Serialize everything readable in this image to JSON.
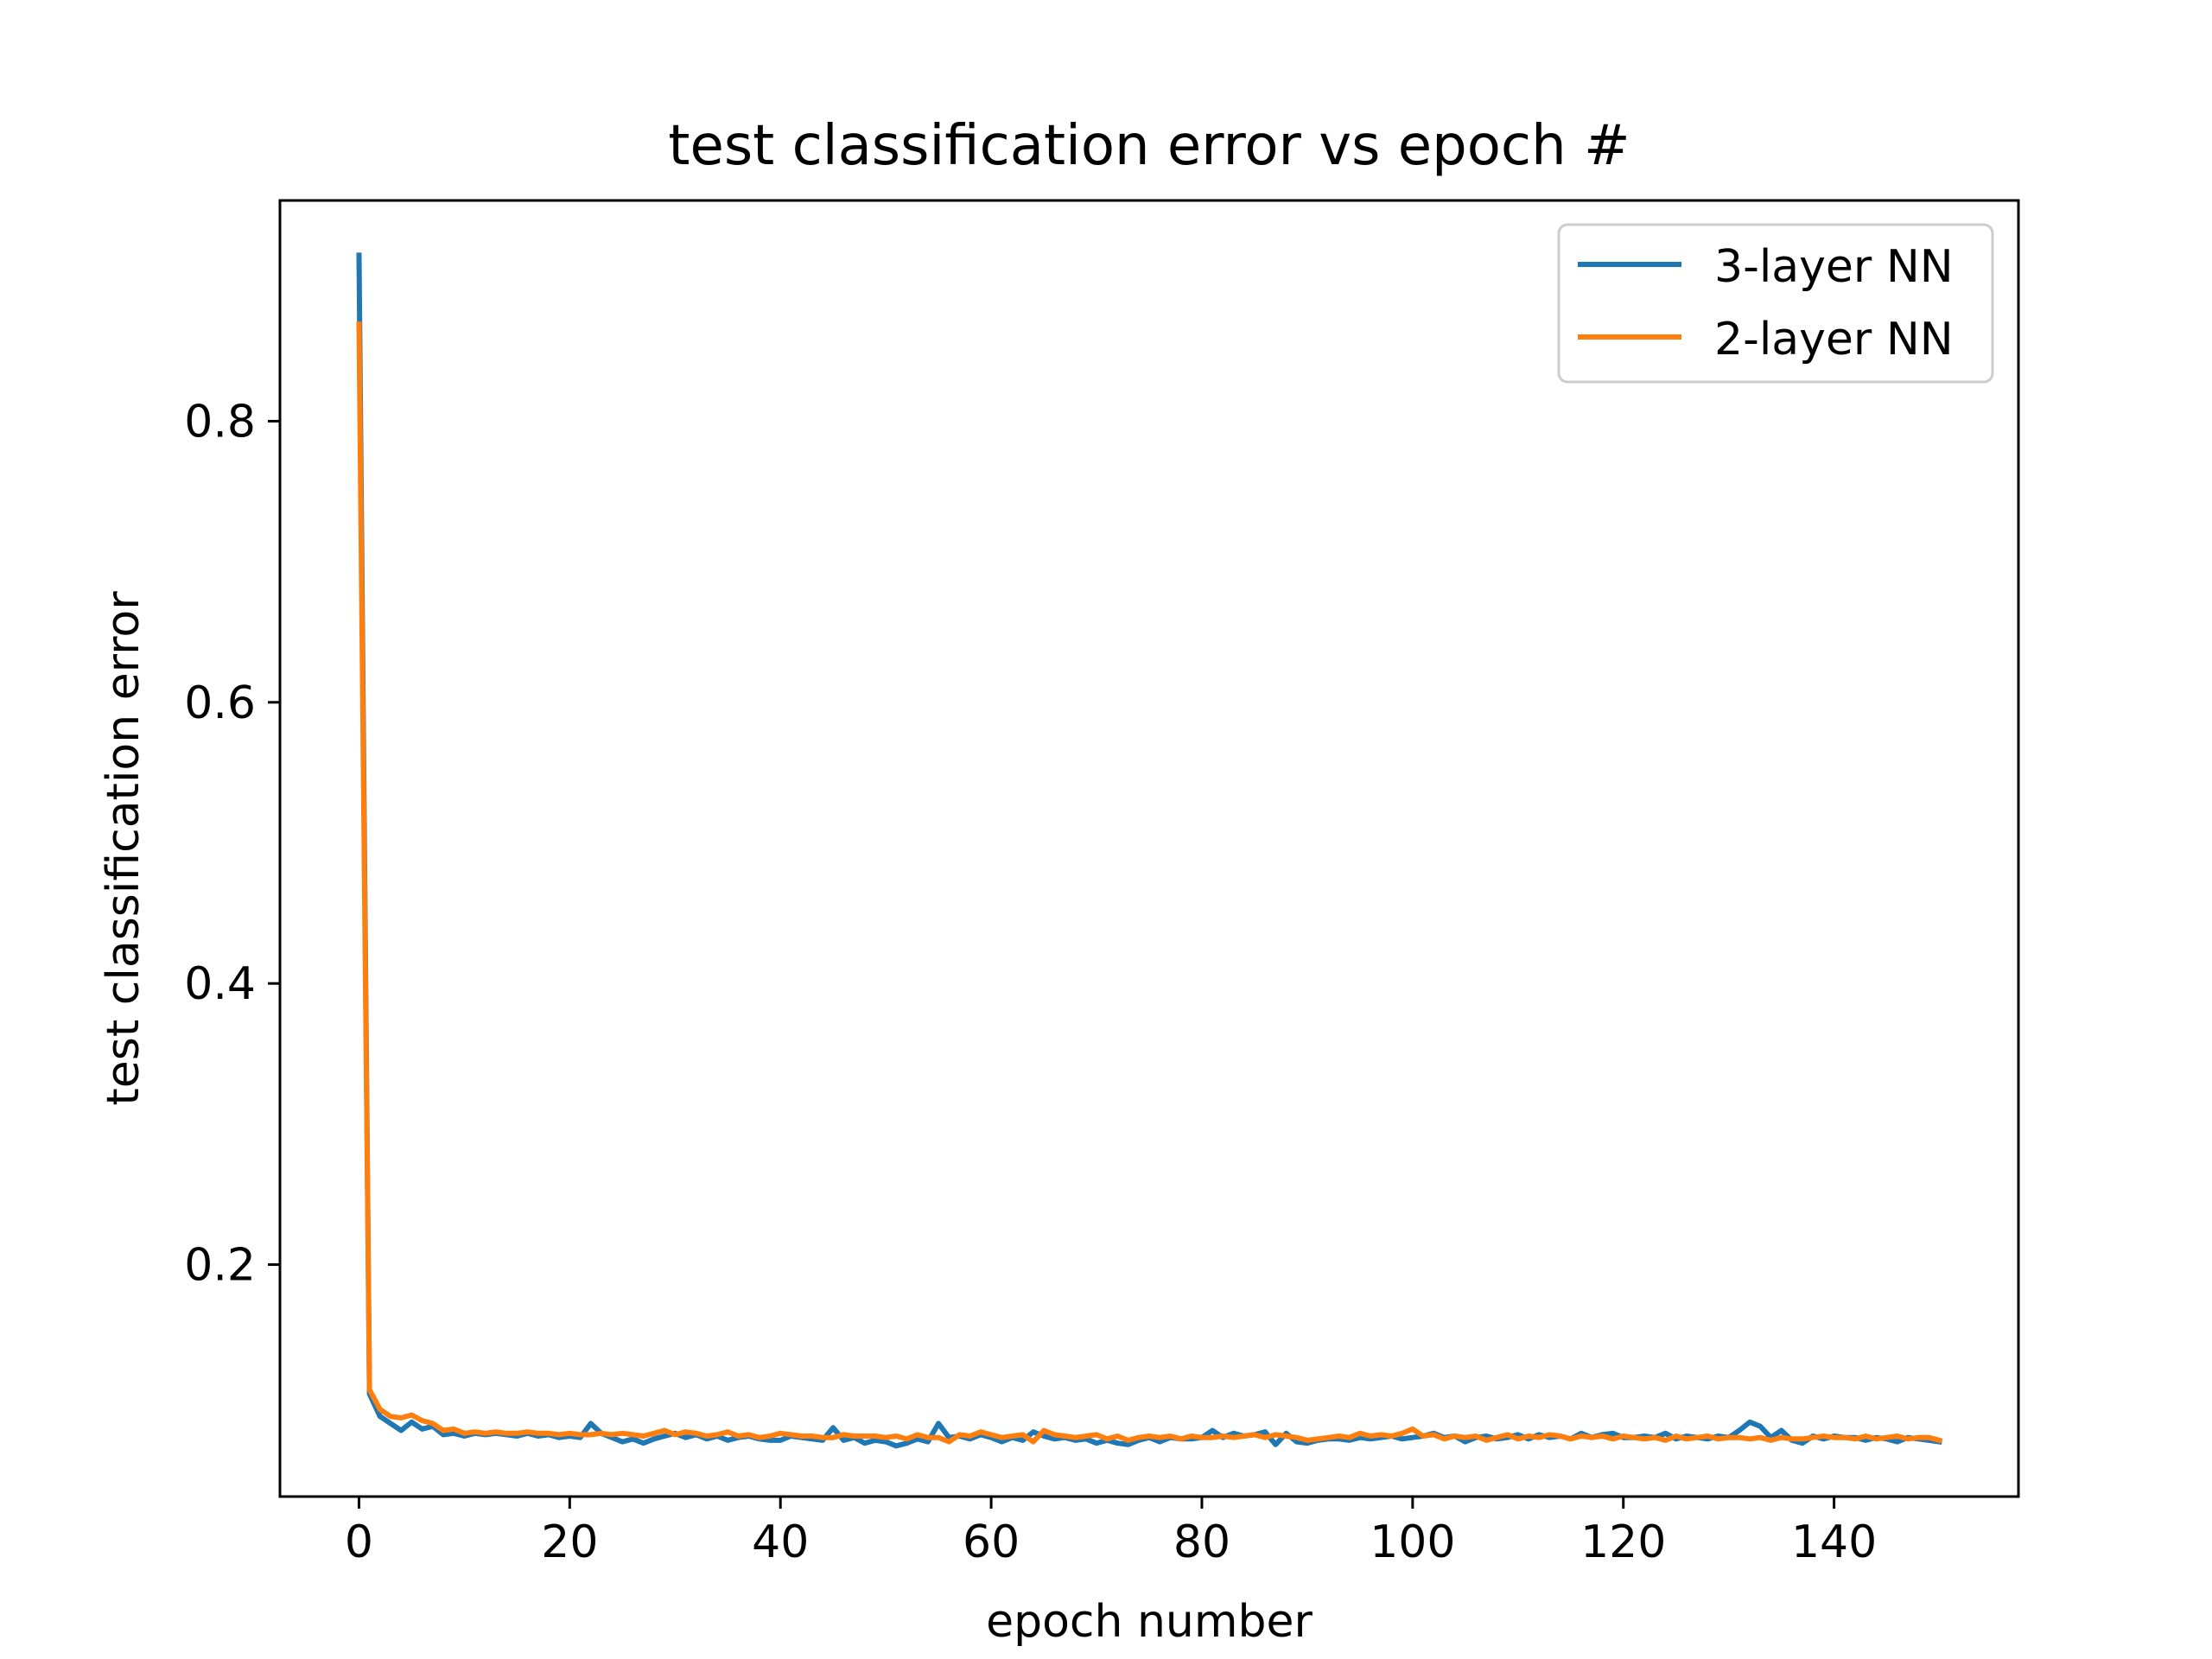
{
  "chart_data": {
    "type": "line",
    "title": "test classification error vs epoch #",
    "xlabel": "epoch number",
    "ylabel": "test classification error",
    "xlim": [
      -7.5,
      157.5
    ],
    "ylim": [
      0.035,
      0.957
    ],
    "xticks": [
      0,
      20,
      40,
      60,
      80,
      100,
      120,
      140
    ],
    "xtick_labels": [
      "0",
      "20",
      "40",
      "60",
      "80",
      "100",
      "120",
      "140"
    ],
    "yticks": [
      0.2,
      0.4,
      0.6,
      0.8
    ],
    "ytick_labels": [
      "0.2",
      "0.4",
      "0.6",
      "0.8"
    ],
    "grid": false,
    "legend": {
      "position": "upper right",
      "entries": [
        "3-layer NN",
        "2-layer NN"
      ]
    },
    "series": [
      {
        "name": "3-layer NN",
        "color": "#1f77b4",
        "x": [
          0,
          1,
          2,
          3,
          4,
          5,
          6,
          7,
          8,
          9,
          10,
          11,
          12,
          13,
          14,
          15,
          16,
          17,
          18,
          19,
          20,
          21,
          22,
          23,
          24,
          25,
          26,
          27,
          28,
          29,
          30,
          31,
          32,
          33,
          34,
          35,
          36,
          37,
          38,
          39,
          40,
          41,
          42,
          43,
          44,
          45,
          46,
          47,
          48,
          49,
          50,
          51,
          52,
          53,
          54,
          55,
          56,
          57,
          58,
          59,
          60,
          61,
          62,
          63,
          64,
          65,
          66,
          67,
          68,
          69,
          70,
          71,
          72,
          73,
          74,
          75,
          76,
          77,
          78,
          79,
          80,
          81,
          82,
          83,
          84,
          85,
          86,
          87,
          88,
          89,
          90,
          91,
          92,
          93,
          94,
          95,
          96,
          97,
          98,
          99,
          100,
          101,
          102,
          103,
          104,
          105,
          106,
          107,
          108,
          109,
          110,
          111,
          112,
          113,
          114,
          115,
          116,
          117,
          118,
          119,
          120,
          121,
          122,
          123,
          124,
          125,
          126,
          127,
          128,
          129,
          130,
          131,
          132,
          133,
          134,
          135,
          136,
          137,
          138,
          139,
          140,
          141,
          142,
          143,
          144,
          145,
          146,
          147,
          148,
          149,
          150
        ],
        "y": [
          0.918,
          0.108,
          0.092,
          0.087,
          0.082,
          0.088,
          0.083,
          0.085,
          0.079,
          0.08,
          0.078,
          0.08,
          0.079,
          0.08,
          0.079,
          0.078,
          0.08,
          0.078,
          0.079,
          0.077,
          0.078,
          0.077,
          0.087,
          0.08,
          0.077,
          0.074,
          0.076,
          0.073,
          0.076,
          0.078,
          0.08,
          0.077,
          0.079,
          0.076,
          0.078,
          0.075,
          0.077,
          0.078,
          0.076,
          0.075,
          0.075,
          0.078,
          0.077,
          0.076,
          0.075,
          0.084,
          0.075,
          0.077,
          0.073,
          0.075,
          0.074,
          0.071,
          0.073,
          0.076,
          0.074,
          0.087,
          0.077,
          0.078,
          0.076,
          0.079,
          0.077,
          0.074,
          0.077,
          0.075,
          0.081,
          0.078,
          0.076,
          0.077,
          0.075,
          0.076,
          0.073,
          0.075,
          0.073,
          0.072,
          0.075,
          0.077,
          0.074,
          0.077,
          0.076,
          0.076,
          0.077,
          0.082,
          0.077,
          0.08,
          0.078,
          0.079,
          0.081,
          0.072,
          0.08,
          0.074,
          0.073,
          0.075,
          0.076,
          0.076,
          0.075,
          0.077,
          0.076,
          0.077,
          0.078,
          0.076,
          0.077,
          0.078,
          0.08,
          0.077,
          0.078,
          0.074,
          0.077,
          0.078,
          0.076,
          0.077,
          0.079,
          0.076,
          0.079,
          0.077,
          0.078,
          0.076,
          0.08,
          0.077,
          0.079,
          0.08,
          0.077,
          0.077,
          0.078,
          0.077,
          0.08,
          0.076,
          0.078,
          0.077,
          0.076,
          0.078,
          0.077,
          0.082,
          0.088,
          0.085,
          0.077,
          0.082,
          0.075,
          0.073,
          0.078,
          0.076,
          0.078,
          0.077,
          0.077,
          0.075,
          0.077,
          0.076,
          0.074,
          0.077,
          0.076,
          0.075,
          0.074
        ]
      },
      {
        "name": "2-layer NN",
        "color": "#ff7f0e",
        "x": [
          0,
          1,
          2,
          3,
          4,
          5,
          6,
          7,
          8,
          9,
          10,
          11,
          12,
          13,
          14,
          15,
          16,
          17,
          18,
          19,
          20,
          21,
          22,
          23,
          24,
          25,
          26,
          27,
          28,
          29,
          30,
          31,
          32,
          33,
          34,
          35,
          36,
          37,
          38,
          39,
          40,
          41,
          42,
          43,
          44,
          45,
          46,
          47,
          48,
          49,
          50,
          51,
          52,
          53,
          54,
          55,
          56,
          57,
          58,
          59,
          60,
          61,
          62,
          63,
          64,
          65,
          66,
          67,
          68,
          69,
          70,
          71,
          72,
          73,
          74,
          75,
          76,
          77,
          78,
          79,
          80,
          81,
          82,
          83,
          84,
          85,
          86,
          87,
          88,
          89,
          90,
          91,
          92,
          93,
          94,
          95,
          96,
          97,
          98,
          99,
          100,
          101,
          102,
          103,
          104,
          105,
          106,
          107,
          108,
          109,
          110,
          111,
          112,
          113,
          114,
          115,
          116,
          117,
          118,
          119,
          120,
          121,
          122,
          123,
          124,
          125,
          126,
          127,
          128,
          129,
          130,
          131,
          132,
          133,
          134,
          135,
          136,
          137,
          138,
          139,
          140,
          141,
          142,
          143,
          144,
          145,
          146,
          147,
          148,
          149,
          150
        ],
        "y": [
          0.869,
          0.111,
          0.097,
          0.092,
          0.091,
          0.093,
          0.089,
          0.087,
          0.082,
          0.083,
          0.08,
          0.081,
          0.08,
          0.081,
          0.08,
          0.08,
          0.081,
          0.08,
          0.08,
          0.079,
          0.08,
          0.079,
          0.079,
          0.08,
          0.079,
          0.08,
          0.079,
          0.078,
          0.08,
          0.082,
          0.079,
          0.081,
          0.08,
          0.078,
          0.079,
          0.081,
          0.078,
          0.079,
          0.077,
          0.078,
          0.08,
          0.079,
          0.078,
          0.078,
          0.077,
          0.077,
          0.079,
          0.078,
          0.078,
          0.078,
          0.077,
          0.078,
          0.076,
          0.079,
          0.077,
          0.077,
          0.074,
          0.079,
          0.078,
          0.081,
          0.079,
          0.077,
          0.078,
          0.079,
          0.074,
          0.082,
          0.079,
          0.078,
          0.077,
          0.078,
          0.079,
          0.076,
          0.078,
          0.075,
          0.077,
          0.078,
          0.077,
          0.078,
          0.076,
          0.078,
          0.077,
          0.077,
          0.078,
          0.077,
          0.078,
          0.079,
          0.077,
          0.079,
          0.078,
          0.077,
          0.075,
          0.076,
          0.077,
          0.078,
          0.077,
          0.08,
          0.078,
          0.079,
          0.078,
          0.08,
          0.083,
          0.078,
          0.079,
          0.076,
          0.078,
          0.077,
          0.078,
          0.075,
          0.077,
          0.079,
          0.076,
          0.078,
          0.077,
          0.079,
          0.078,
          0.076,
          0.078,
          0.077,
          0.078,
          0.076,
          0.078,
          0.077,
          0.076,
          0.077,
          0.075,
          0.078,
          0.076,
          0.077,
          0.078,
          0.076,
          0.077,
          0.077,
          0.076,
          0.077,
          0.075,
          0.077,
          0.076,
          0.076,
          0.077,
          0.078,
          0.077,
          0.077,
          0.076,
          0.078,
          0.076,
          0.077,
          0.078,
          0.076,
          0.077,
          0.077,
          0.075
        ]
      }
    ]
  }
}
